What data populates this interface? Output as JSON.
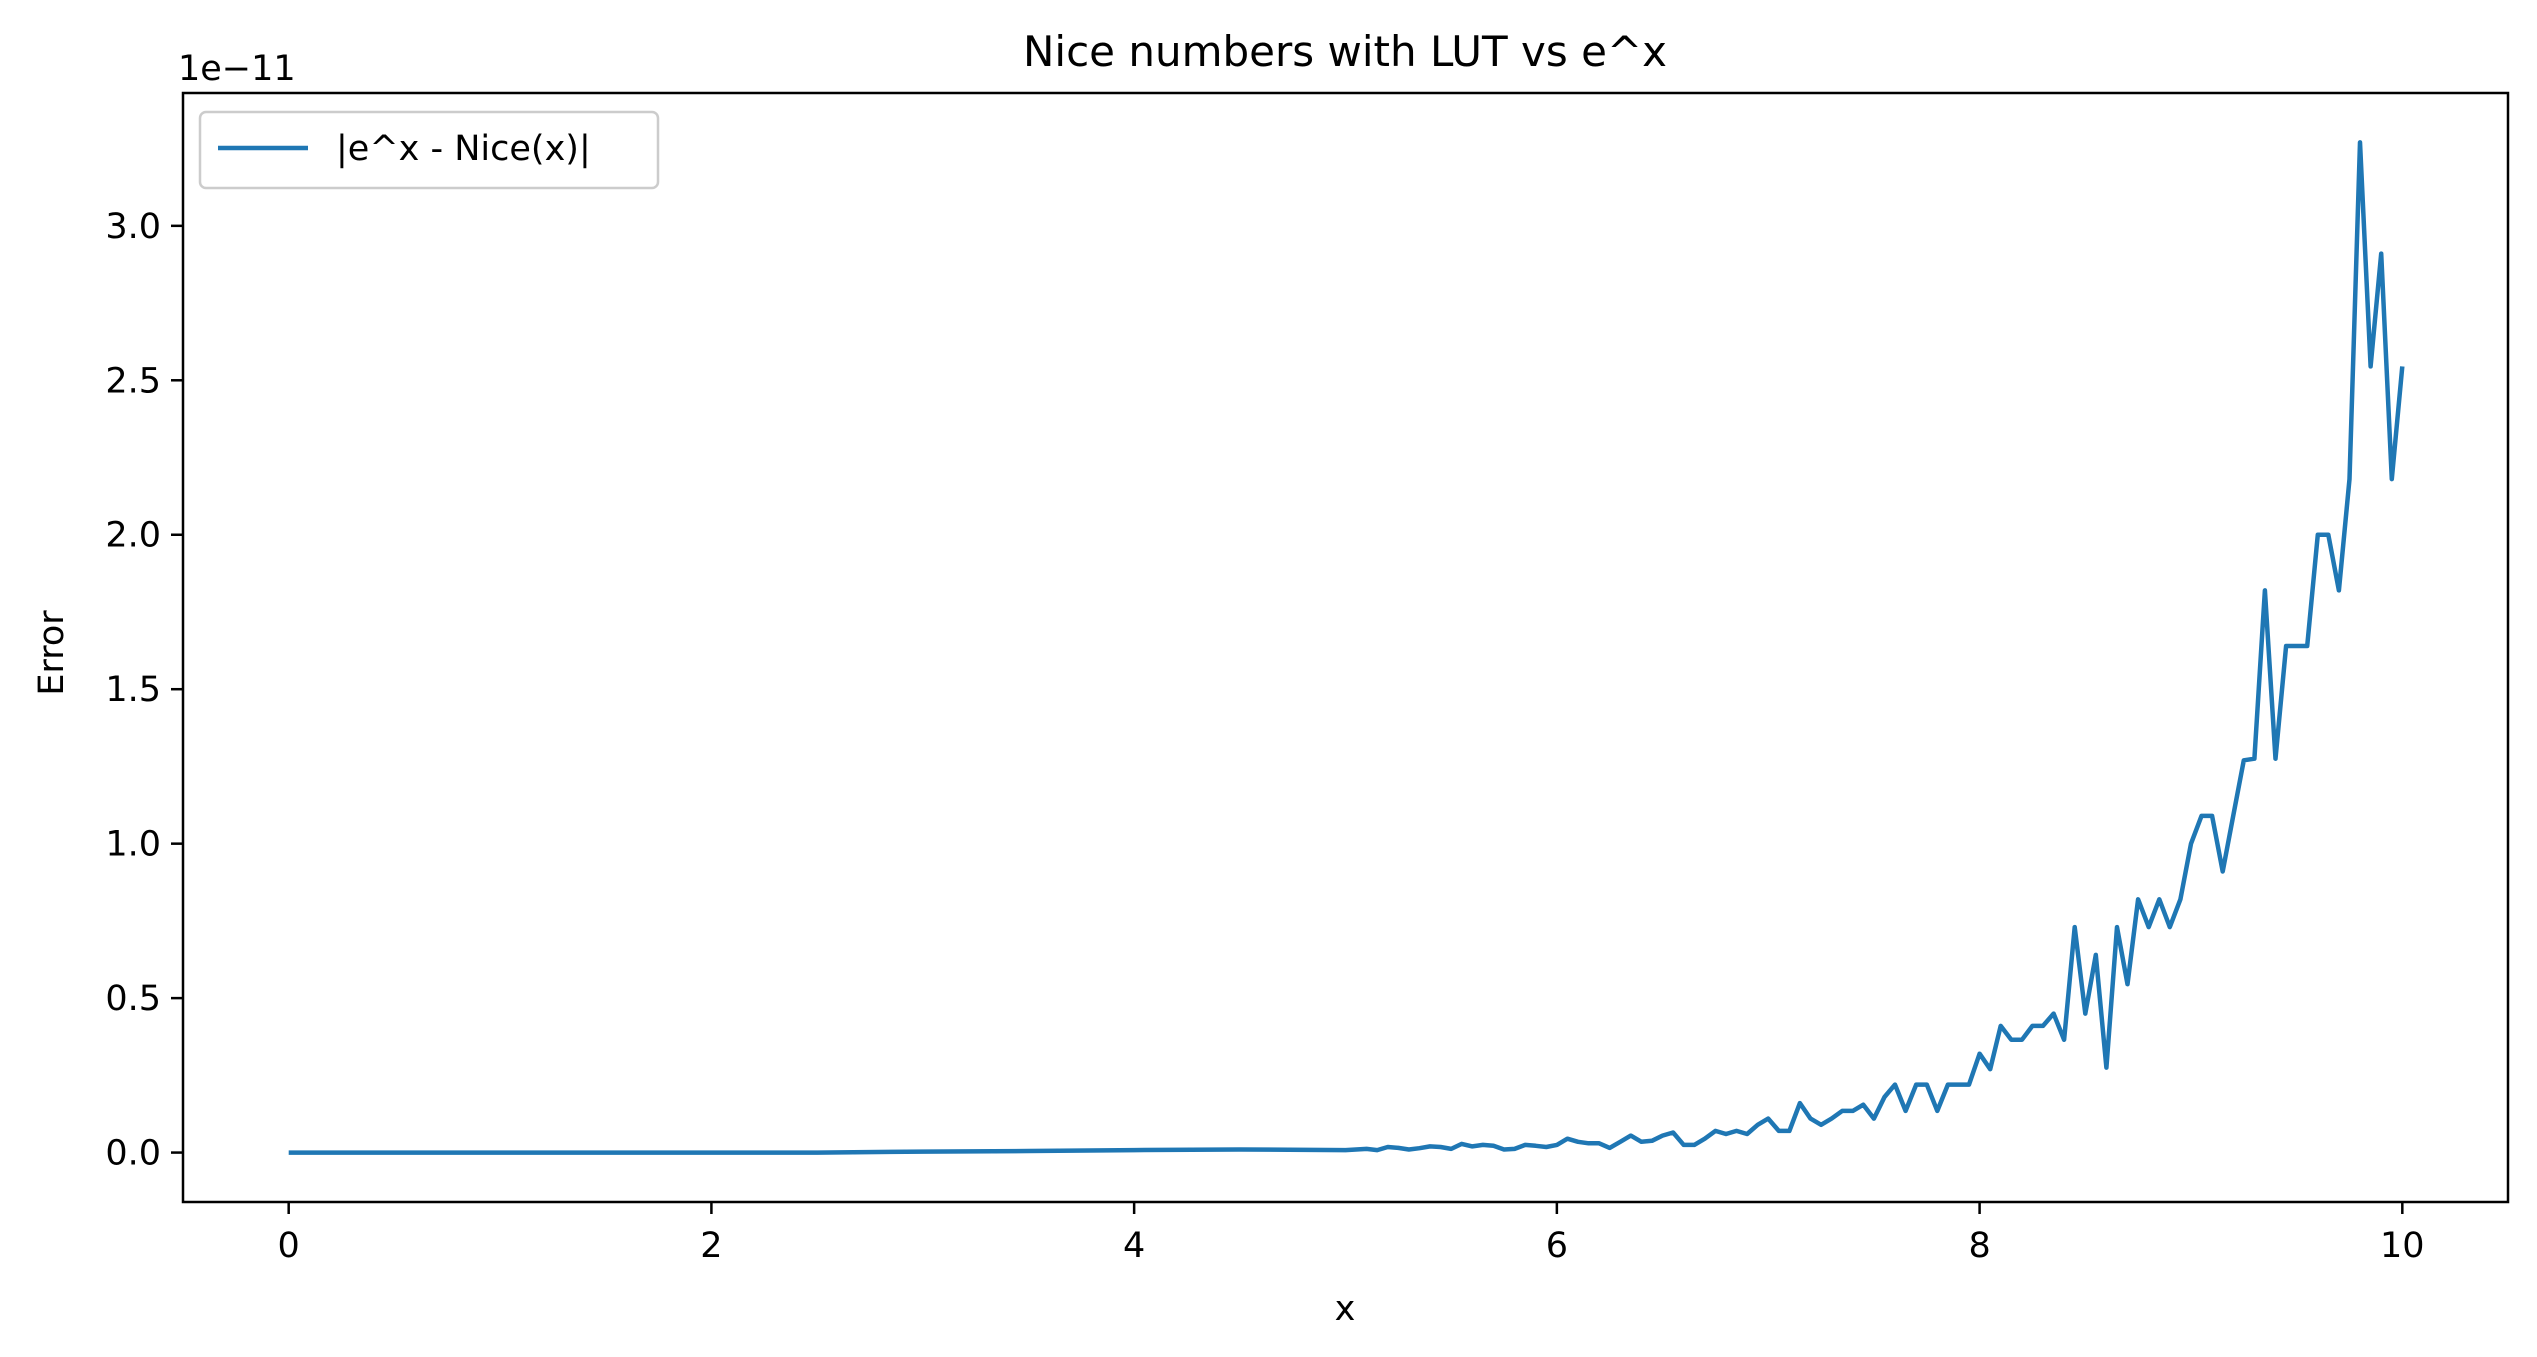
{
  "chart_data": {
    "type": "line",
    "title": "Nice numbers with LUT vs e^x",
    "xlabel": "x",
    "ylabel": "Error",
    "y_offset_label": "1e−11",
    "xlim": [
      -0.5,
      10.5
    ],
    "ylim": [
      -0.16,
      3.43
    ],
    "x_ticks": [
      0,
      2,
      4,
      6,
      8,
      10
    ],
    "x_tick_labels": [
      "0",
      "2",
      "4",
      "6",
      "8",
      "10"
    ],
    "y_ticks": [
      0.0,
      0.5,
      1.0,
      1.5,
      2.0,
      2.5,
      3.0
    ],
    "y_tick_labels": [
      "0.0",
      "0.5",
      "1.0",
      "1.5",
      "2.0",
      "2.5",
      "3.0"
    ],
    "grid": false,
    "legend_position": "upper-left",
    "series": [
      {
        "name": "|e^x - Nice(x)|",
        "color": "#1f77b4",
        "x": [
          0,
          2.5,
          3.0,
          3.5,
          4.0,
          4.5,
          5.0,
          5.05,
          5.1,
          5.15,
          5.2,
          5.25,
          5.3,
          5.35,
          5.4,
          5.45,
          5.5,
          5.55,
          5.6,
          5.65,
          5.7,
          5.75,
          5.8,
          5.85,
          5.9,
          5.95,
          6.0,
          6.05,
          6.1,
          6.15,
          6.2,
          6.25,
          6.3,
          6.35,
          6.4,
          6.45,
          6.5,
          6.55,
          6.6,
          6.65,
          6.7,
          6.75,
          6.8,
          6.85,
          6.9,
          6.95,
          7.0,
          7.05,
          7.1,
          7.15,
          7.2,
          7.25,
          7.3,
          7.35,
          7.4,
          7.45,
          7.5,
          7.55,
          7.6,
          7.65,
          7.7,
          7.75,
          7.8,
          7.85,
          7.9,
          7.95,
          8.0,
          8.05,
          8.1,
          8.15,
          8.2,
          8.25,
          8.3,
          8.35,
          8.4,
          8.45,
          8.5,
          8.55,
          8.6,
          8.65,
          8.7,
          8.75,
          8.8,
          8.85,
          8.9,
          8.95,
          9.0,
          9.05,
          9.1,
          9.15,
          9.2,
          9.25,
          9.3,
          9.35,
          9.4,
          9.45,
          9.5,
          9.55,
          9.6,
          9.65,
          9.7,
          9.75,
          9.8,
          9.85,
          9.9,
          9.95,
          10.0
        ],
        "values": [
          0.0,
          0.0,
          0.003,
          0.005,
          0.008,
          0.01,
          0.008,
          0.01,
          0.012,
          0.008,
          0.018,
          0.015,
          0.01,
          0.014,
          0.02,
          0.018,
          0.012,
          0.028,
          0.02,
          0.025,
          0.022,
          0.01,
          0.012,
          0.025,
          0.022,
          0.018,
          0.025,
          0.045,
          0.035,
          0.03,
          0.03,
          0.015,
          0.035,
          0.055,
          0.035,
          0.038,
          0.055,
          0.065,
          0.025,
          0.025,
          0.045,
          0.07,
          0.06,
          0.07,
          0.06,
          0.09,
          0.11,
          0.07,
          0.07,
          0.16,
          0.11,
          0.09,
          0.11,
          0.135,
          0.135,
          0.155,
          0.11,
          0.18,
          0.22,
          0.135,
          0.22,
          0.22,
          0.135,
          0.22,
          0.22,
          0.22,
          0.32,
          0.27,
          0.41,
          0.365,
          0.365,
          0.41,
          0.41,
          0.45,
          0.365,
          0.73,
          0.45,
          0.64,
          0.275,
          0.73,
          0.545,
          0.82,
          0.73,
          0.82,
          0.73,
          0.82,
          1.0,
          1.09,
          1.09,
          0.91,
          1.09,
          1.27,
          1.275,
          1.82,
          1.275,
          1.64,
          1.64,
          1.64,
          2.0,
          2.0,
          1.82,
          2.18,
          3.27,
          2.545,
          2.91,
          2.18,
          2.545
        ]
      }
    ]
  }
}
